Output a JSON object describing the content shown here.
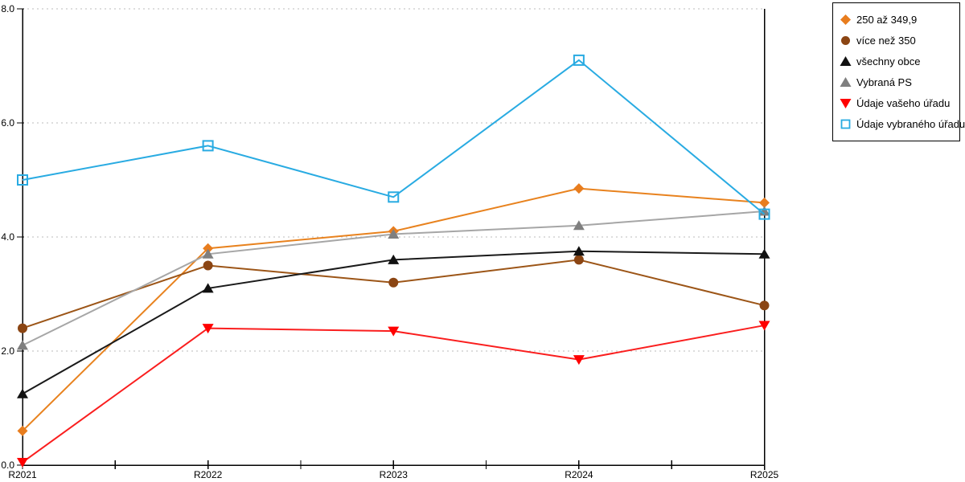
{
  "chart_data": {
    "type": "line",
    "title": "",
    "xlabel": "",
    "ylabel": "",
    "x_categories": [
      "R2021",
      "R2022",
      "R2023",
      "R2024",
      "R2025"
    ],
    "y_tick_labels": [
      "0.0",
      "2.0",
      "4.0",
      "6.0",
      "8.0"
    ],
    "ylim": [
      0,
      8
    ],
    "y_tick_step": 2,
    "grid": {
      "horizontal_dotted": true,
      "color": "#BBBBBB"
    },
    "axis_color": "#000000",
    "legend_position": "outside-top-right",
    "series": [
      {
        "name": "250 až 349,9",
        "marker": "diamond",
        "color": "#E87D1E",
        "line_color": "#E8821E",
        "values": [
          0.6,
          3.8,
          4.1,
          4.85,
          4.6
        ]
      },
      {
        "name": "více než 350",
        "marker": "circle",
        "color": "#8B4513",
        "line_color": "#9C5517",
        "values": [
          2.4,
          3.5,
          3.2,
          3.6,
          2.8
        ]
      },
      {
        "name": "všechny obce",
        "marker": "triangle-up",
        "color": "#111111",
        "line_color": "#1A1A1A",
        "values": [
          1.25,
          3.1,
          3.6,
          3.75,
          3.7
        ]
      },
      {
        "name": "Vybraná PS",
        "marker": "triangle-up",
        "color": "#7F7F7F",
        "line_color": "#A6A6A6",
        "values": [
          2.1,
          3.7,
          4.05,
          4.2,
          4.45
        ]
      },
      {
        "name": "Údaje vašeho úřadu",
        "marker": "triangle-down",
        "color": "#FF0000",
        "line_color": "#FA1E1E",
        "values": [
          0.05,
          2.4,
          2.35,
          1.85,
          2.45
        ]
      },
      {
        "name": "Údaje vybraného úřadu",
        "marker": "square-open",
        "color": "#29ABE2",
        "line_color": "#29ABE2",
        "values": [
          5.0,
          5.6,
          4.7,
          7.1,
          4.4
        ]
      }
    ]
  }
}
